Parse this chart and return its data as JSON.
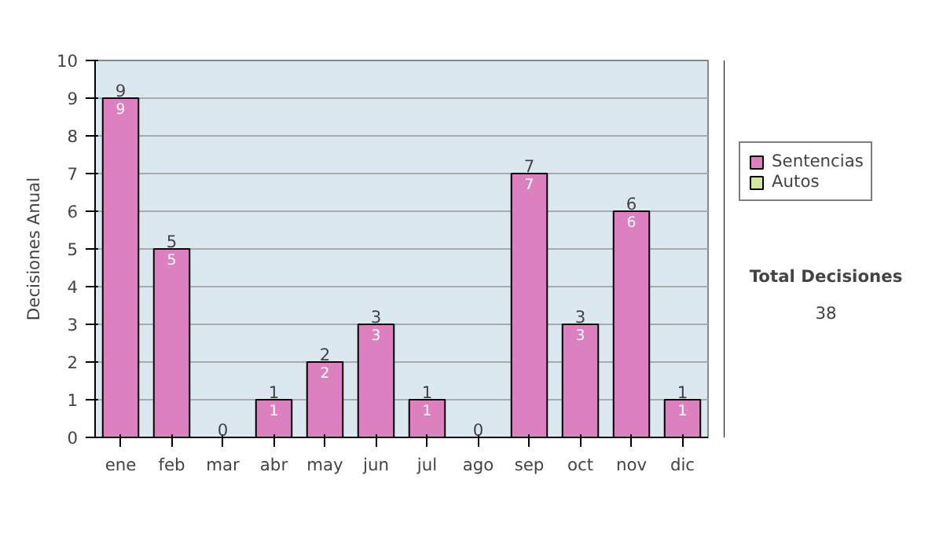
{
  "chart_data": {
    "type": "bar",
    "stacked": true,
    "ylabel": "Decisiones Anual",
    "categories": [
      "ene",
      "feb",
      "mar",
      "abr",
      "may",
      "jun",
      "jul",
      "ago",
      "sep",
      "oct",
      "nov",
      "dic"
    ],
    "series": [
      {
        "name": "Sentencias",
        "color": "#dd80c0",
        "values": [
          9,
          5,
          0,
          1,
          2,
          3,
          1,
          0,
          7,
          3,
          6,
          1
        ],
        "value_labels": [
          "9",
          "5",
          null,
          "1",
          "2",
          "3",
          "1",
          null,
          "7",
          "3",
          "6",
          "1"
        ]
      },
      {
        "name": "Autos",
        "color": "#d4e8a0",
        "values": [
          0,
          0,
          0,
          0,
          0,
          0,
          0,
          0,
          0,
          0,
          0,
          0
        ]
      }
    ],
    "totals": [
      "9",
      "5",
      "0",
      "1",
      "2",
      "3",
      "1",
      "0",
      "7",
      "3",
      "6",
      "1"
    ],
    "ylim": [
      0,
      10
    ],
    "yticks": [
      0,
      1,
      2,
      3,
      4,
      5,
      6,
      7,
      8,
      9,
      10
    ],
    "grid": "y",
    "legend": "right",
    "annotations": [
      "Total Decisiones",
      "38"
    ]
  }
}
